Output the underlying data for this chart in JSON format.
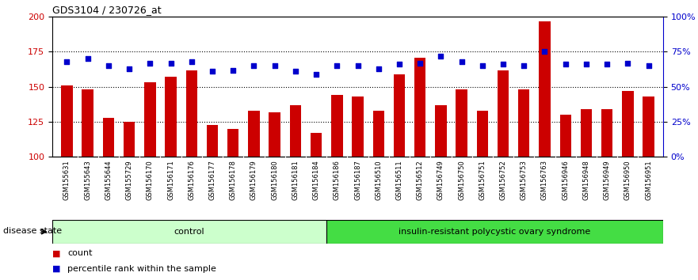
{
  "title": "GDS3104 / 230726_at",
  "categories": [
    "GSM155631",
    "GSM155643",
    "GSM155644",
    "GSM155729",
    "GSM156170",
    "GSM156171",
    "GSM156176",
    "GSM156177",
    "GSM156178",
    "GSM156179",
    "GSM156180",
    "GSM156181",
    "GSM156184",
    "GSM156186",
    "GSM156187",
    "GSM156510",
    "GSM156511",
    "GSM156512",
    "GSM156749",
    "GSM156750",
    "GSM156751",
    "GSM156752",
    "GSM156753",
    "GSM156763",
    "GSM156946",
    "GSM156948",
    "GSM156949",
    "GSM156950",
    "GSM156951"
  ],
  "bar_values": [
    151,
    148,
    128,
    125,
    153,
    157,
    162,
    123,
    120,
    133,
    132,
    137,
    117,
    144,
    143,
    133,
    159,
    171,
    137,
    148,
    133,
    162,
    148,
    197,
    130,
    134,
    134,
    147,
    143
  ],
  "dot_values": [
    68,
    70,
    65,
    63,
    67,
    67,
    68,
    61,
    62,
    65,
    65,
    61,
    59,
    65,
    65,
    63,
    66,
    67,
    72,
    68,
    65,
    66,
    65,
    75,
    66,
    66,
    66,
    67,
    65
  ],
  "ylim_left": [
    100,
    200
  ],
  "ylim_right": [
    0,
    100
  ],
  "yticks_left": [
    100,
    125,
    150,
    175,
    200
  ],
  "yticks_right": [
    0,
    25,
    50,
    75,
    100
  ],
  "bar_color": "#cc0000",
  "dot_color": "#0000cc",
  "dotted_line_values": [
    125,
    150,
    175
  ],
  "control_count": 13,
  "control_label": "control",
  "disease_label": "insulin-resistant polycystic ovary syndrome",
  "disease_state_label": "disease state",
  "legend_bar_label": "count",
  "legend_dot_label": "percentile rank within the sample",
  "bg_color": "#ffffff",
  "tick_area_color": "#c8c8c8",
  "control_bg": "#ccffcc",
  "disease_bg": "#44dd44",
  "bar_width": 0.55
}
